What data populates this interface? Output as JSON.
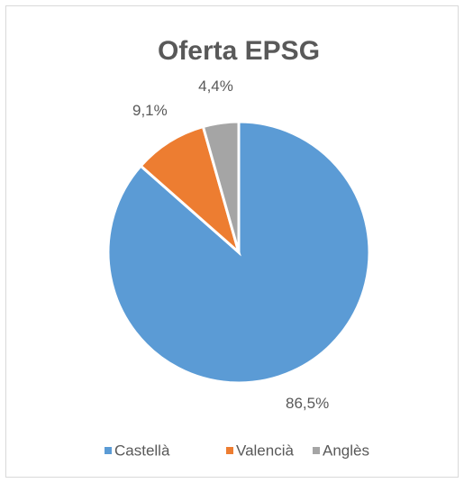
{
  "chart_data": {
    "type": "pie",
    "title": "Oferta EPSG",
    "categories": [
      "Castellà",
      "Valencià",
      "Anglès"
    ],
    "values": [
      86.5,
      9.1,
      4.4
    ],
    "value_labels": [
      "86,5%",
      "9,1%",
      "4,4%"
    ],
    "colors": [
      "#5b9bd5",
      "#ed7d31",
      "#a5a5a5"
    ],
    "legend": "bottom"
  }
}
